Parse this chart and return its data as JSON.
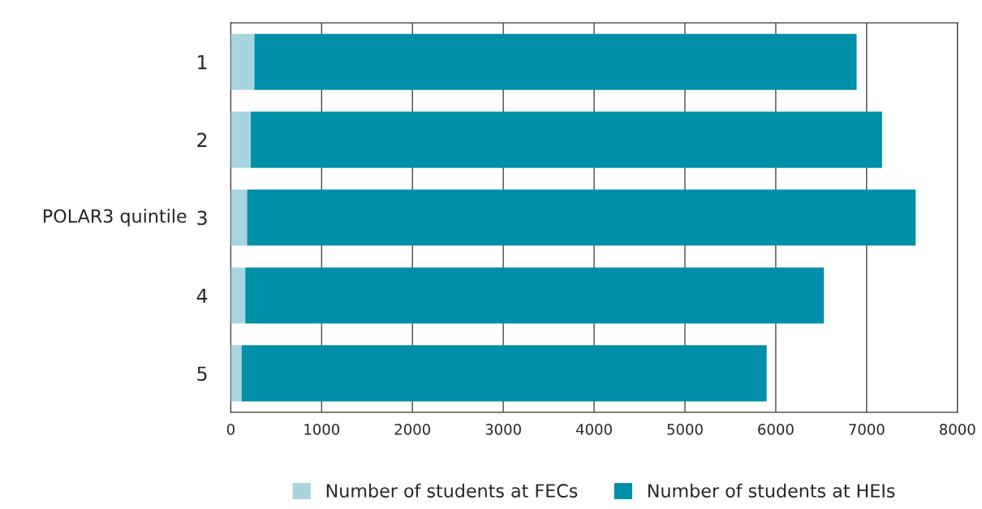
{
  "chart_data": {
    "type": "bar",
    "orientation": "horizontal",
    "stacked": true,
    "categories": [
      "1",
      "2",
      "3",
      "4",
      "5"
    ],
    "ylabel": "POLAR3 quintile",
    "series": [
      {
        "name": "Number of students at FECs",
        "color": "#a6d4df",
        "values": [
          260,
          220,
          180,
          160,
          120
        ]
      },
      {
        "name": "Number of students at HEIs",
        "color": "#008fa8",
        "values": [
          6630,
          6950,
          7360,
          6370,
          5780
        ]
      }
    ],
    "xlim": [
      0,
      8000
    ],
    "xticks": [
      0,
      1000,
      2000,
      3000,
      4000,
      5000,
      6000,
      7000,
      8000
    ],
    "grid": "x",
    "legend": "bottom"
  }
}
